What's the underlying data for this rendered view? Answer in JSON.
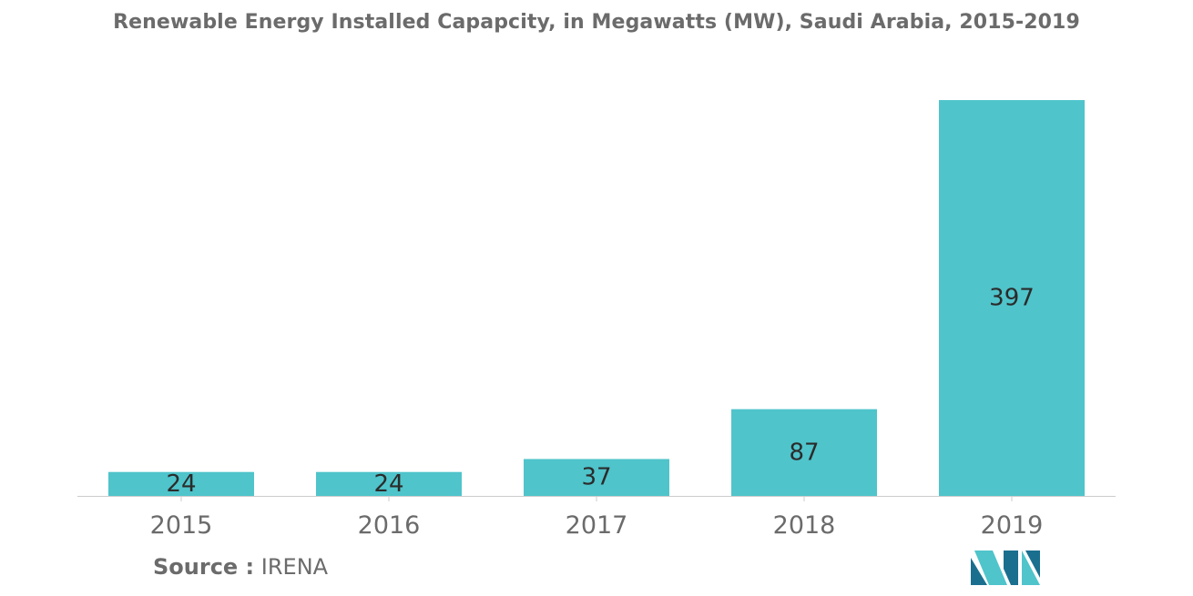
{
  "chart_data": {
    "type": "bar",
    "title": "Renewable Energy Installed Capapcity, in Megawatts (MW), Saudi Arabia, 2015-2019",
    "categories": [
      "2015",
      "2016",
      "2017",
      "2018",
      "2019"
    ],
    "values": [
      24,
      24,
      37,
      87,
      397
    ],
    "data_labels": [
      "24",
      "24",
      "37",
      "87",
      "397"
    ],
    "xlabel": "",
    "ylabel": "",
    "ylim": [
      0,
      400
    ],
    "grid": false,
    "legend": "none",
    "bar_color": "#4fc4cb"
  },
  "source": {
    "label": "Source :",
    "value": "IRENA"
  },
  "colors": {
    "text": "#6b6b6b",
    "label": "#2b2b2b",
    "axis": "#cccccc",
    "logo_dark": "#1a6f8f",
    "logo_light": "#4fc4cb"
  }
}
